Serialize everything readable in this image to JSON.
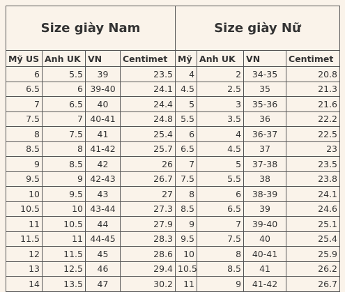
{
  "table": {
    "groups": [
      "Size giày Nam",
      "Size giày Nữ"
    ],
    "columns": [
      "Mỹ US",
      "Anh UK",
      "VN",
      "Centimet",
      "Mỹ",
      "Anh UK",
      "VN",
      "Centimet"
    ],
    "rows": [
      [
        "6",
        "5.5",
        "39",
        "23.5",
        "4",
        "2",
        "34-35",
        "20.8"
      ],
      [
        "6.5",
        "6",
        "39-40",
        "24.1",
        "4.5",
        "2.5",
        "35",
        "21.3"
      ],
      [
        "7",
        "6.5",
        "40",
        "24.4",
        "5",
        "3",
        "35-36",
        "21.6"
      ],
      [
        "7.5",
        "7",
        "40-41",
        "24.8",
        "5.5",
        "3.5",
        "36",
        "22.2"
      ],
      [
        "8",
        "7.5",
        "41",
        "25.4",
        "6",
        "4",
        "36-37",
        "22.5"
      ],
      [
        "8.5",
        "8",
        "41-42",
        "25.7",
        "6.5",
        "4.5",
        "37",
        "23"
      ],
      [
        "9",
        "8.5",
        "42",
        "26",
        "7",
        "5",
        "37-38",
        "23.5"
      ],
      [
        "9.5",
        "9",
        "42-43",
        "26.7",
        "7.5",
        "5.5",
        "38",
        "23.8"
      ],
      [
        "10",
        "9.5",
        "43",
        "27",
        "8",
        "6",
        "38-39",
        "24.1"
      ],
      [
        "10.5",
        "10",
        "43-44",
        "27.3",
        "8.5",
        "6.5",
        "39",
        "24.6"
      ],
      [
        "11",
        "10.5",
        "44",
        "27.9",
        "9",
        "7",
        "39-40",
        "25.1"
      ],
      [
        "11.5",
        "11",
        "44-45",
        "28.3",
        "9.5",
        "7.5",
        "40",
        "25.4"
      ],
      [
        "12",
        "11.5",
        "45",
        "28.6",
        "10",
        "8",
        "40-41",
        "25.9"
      ],
      [
        "13",
        "12.5",
        "46",
        "29.4",
        "10.5",
        "8.5",
        "41",
        "26.2"
      ],
      [
        "14",
        "13.5",
        "47",
        "30.2",
        "11",
        "9",
        "41-42",
        "26.7"
      ]
    ]
  }
}
